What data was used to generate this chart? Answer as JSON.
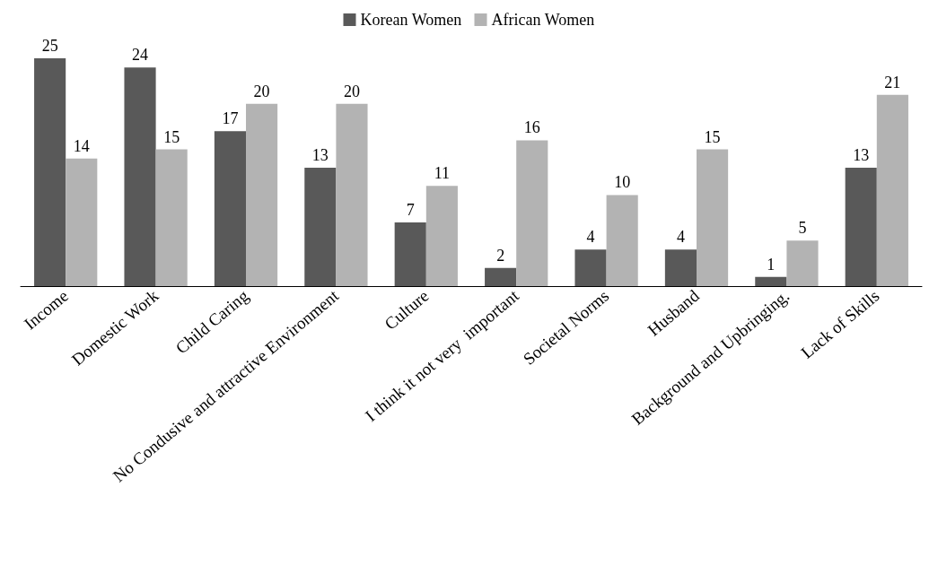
{
  "chart_data": {
    "type": "bar",
    "categories": [
      "Income",
      "Domestic Work",
      "Child Caring",
      "No Condusive and attractive Environment",
      "Culture",
      "I think it not very  important",
      "Societal Norms",
      "Husband",
      "Background and Upbringing.",
      "Lack of Skills"
    ],
    "series": [
      {
        "name": "Korean Women",
        "color": "#595959",
        "values": [
          25,
          24,
          17,
          13,
          7,
          2,
          4,
          4,
          1,
          13
        ]
      },
      {
        "name": "African Women",
        "color": "#b3b3b3",
        "values": [
          14,
          15,
          20,
          20,
          11,
          16,
          10,
          15,
          5,
          21
        ]
      }
    ],
    "data_labels": true,
    "legend": "top",
    "grid": false
  }
}
